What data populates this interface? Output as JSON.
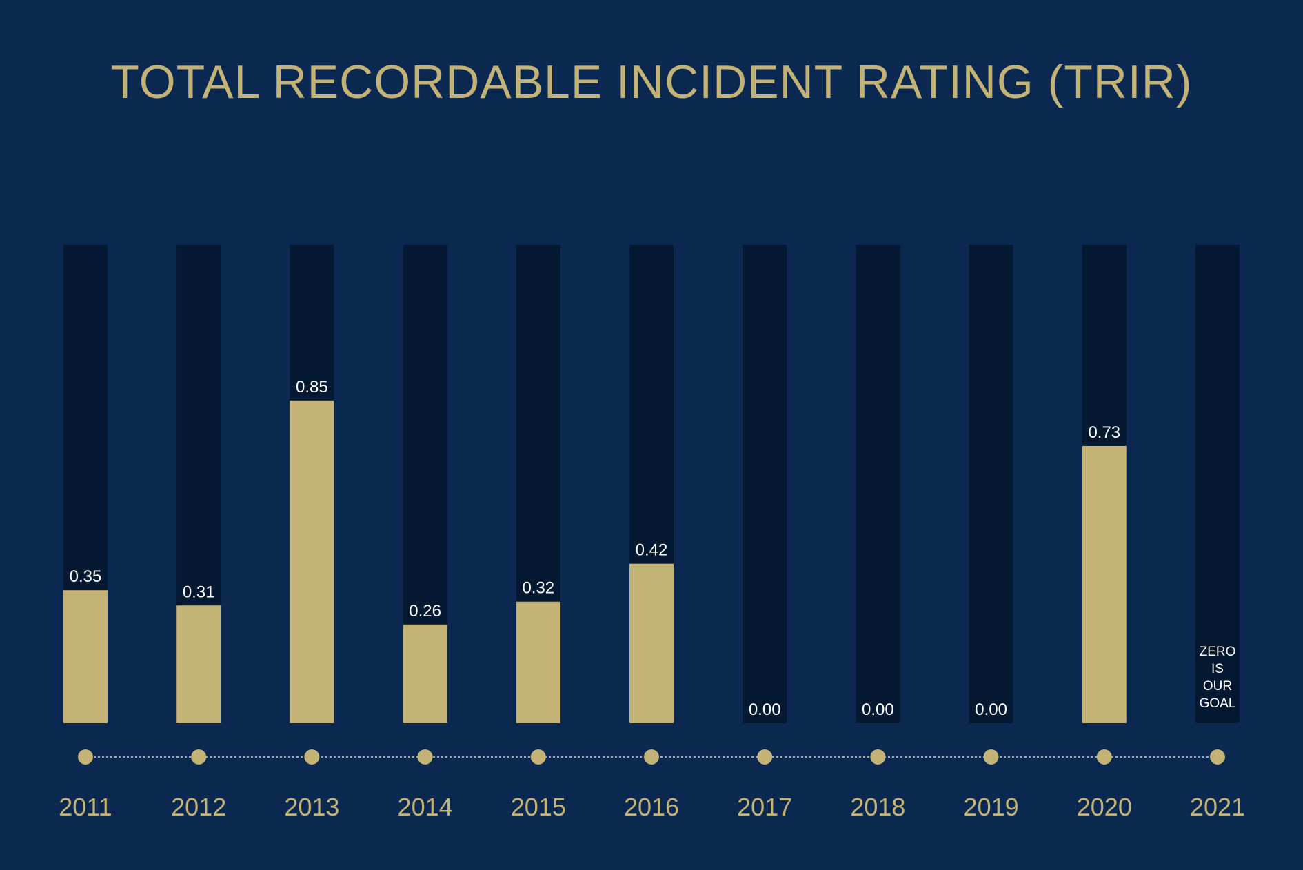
{
  "colors": {
    "background": "#0b2850",
    "track": "#051933",
    "bar": "#c4b376",
    "label": "#ffffff",
    "accent": "#c4b376"
  },
  "chart_data": {
    "type": "bar",
    "title": "TOTAL RECORDABLE INCIDENT RATING (TRIR)",
    "xlabel": "",
    "ylabel": "",
    "ylim": [
      0,
      1.26
    ],
    "grid": false,
    "categories": [
      "2011",
      "2012",
      "2013",
      "2014",
      "2015",
      "2016",
      "2017",
      "2018",
      "2019",
      "2020",
      "2021"
    ],
    "values": [
      0.35,
      0.31,
      0.85,
      0.26,
      0.32,
      0.42,
      0.0,
      0.0,
      0.0,
      0.73,
      null
    ],
    "data_labels": [
      "0.35",
      "0.31",
      "0.85",
      "0.26",
      "0.32",
      "0.42",
      "0.00",
      "0.00",
      "0.00",
      "0.73",
      ""
    ],
    "annotation": {
      "category": "2021",
      "lines": [
        "ZERO",
        "IS",
        "OUR",
        "GOAL"
      ]
    }
  }
}
